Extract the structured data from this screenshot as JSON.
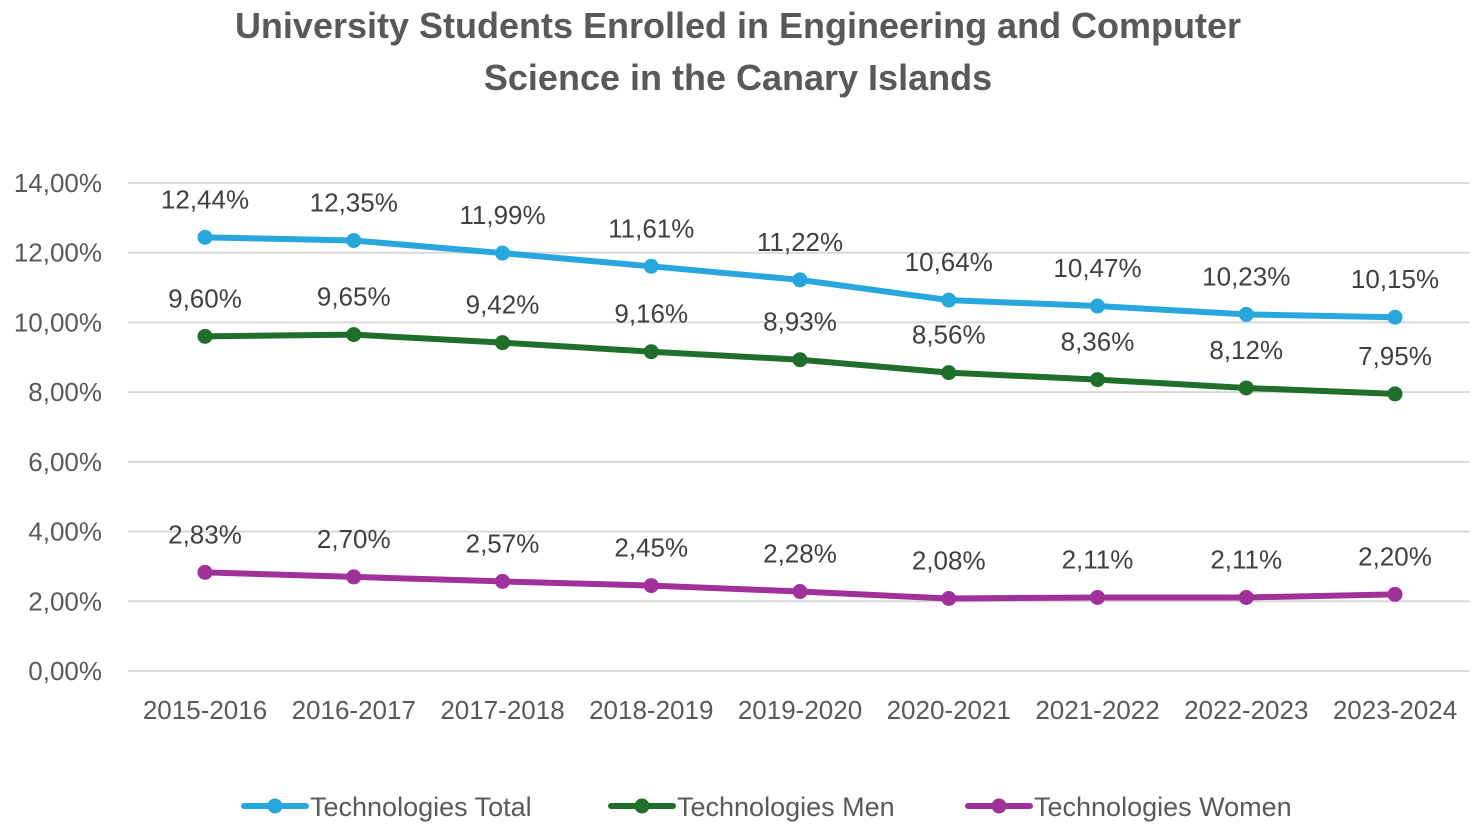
{
  "chart_data": {
    "type": "line",
    "title_lines": [
      "University Students Enrolled in Engineering and Computer",
      "Science in the Canary Islands"
    ],
    "xlabel": "",
    "ylabel": "",
    "ylim": [
      0,
      14
    ],
    "y_ticks": [
      {
        "value": 0,
        "label": "0,00%"
      },
      {
        "value": 2,
        "label": "2,00%"
      },
      {
        "value": 4,
        "label": "4,00%"
      },
      {
        "value": 6,
        "label": "6,00%"
      },
      {
        "value": 8,
        "label": "8,00%"
      },
      {
        "value": 10,
        "label": "10,00%"
      },
      {
        "value": 12,
        "label": "12,00%"
      },
      {
        "value": 14,
        "label": "14,00%"
      }
    ],
    "grid": true,
    "legend_position": "bottom",
    "categories": [
      "2015-2016",
      "2016-2017",
      "2017-2018",
      "2018-2019",
      "2019-2020",
      "2020-2021",
      "2021-2022",
      "2022-2023",
      "2023-2024"
    ],
    "series": [
      {
        "name": "Technologies Total",
        "color": "#27A7DD",
        "values": [
          12.44,
          12.35,
          11.99,
          11.61,
          11.22,
          10.64,
          10.47,
          10.23,
          10.15
        ],
        "labels": [
          "12,44%",
          "12,35%",
          "11,99%",
          "11,61%",
          "11,22%",
          "10,64%",
          "10,47%",
          "10,23%",
          "10,15%"
        ]
      },
      {
        "name": "Technologies Men",
        "color": "#1F6E2B",
        "values": [
          9.6,
          9.65,
          9.42,
          9.16,
          8.93,
          8.56,
          8.36,
          8.12,
          7.95
        ],
        "labels": [
          "9,60%",
          "9,65%",
          "9,42%",
          "9,16%",
          "8,93%",
          "8,56%",
          "8,36%",
          "8,12%",
          "7,95%"
        ]
      },
      {
        "name": "Technologies Women",
        "color": "#A0309A",
        "values": [
          2.83,
          2.7,
          2.57,
          2.45,
          2.28,
          2.08,
          2.11,
          2.11,
          2.2
        ],
        "labels": [
          "2,83%",
          "2,70%",
          "2,57%",
          "2,45%",
          "2,28%",
          "2,08%",
          "2,11%",
          "2,11%",
          "2,20%"
        ]
      }
    ]
  }
}
